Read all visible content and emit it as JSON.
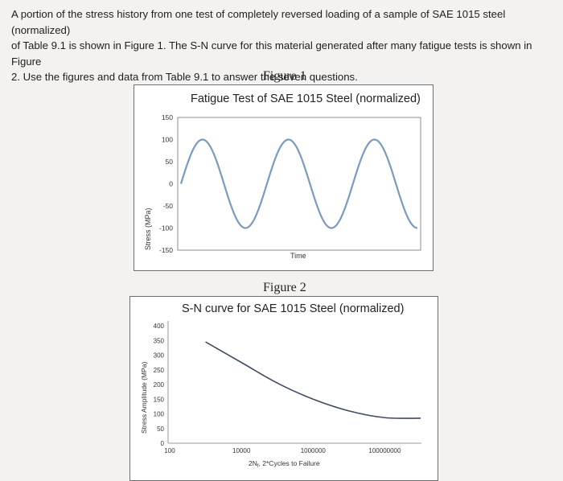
{
  "intro_lines": [
    "A portion of the stress history from one test of completely reversed loading of a sample of SAE 1015 steel (normalized)",
    "of Table 9.1 is shown in Figure 1.  The S-N curve for this material generated after many fatigue tests is shown in Figure",
    "2. Use the figures and data from Table 9.1 to answer the seven questions."
  ],
  "figure1": {
    "caption": "Figure 1",
    "title": "Fatigue Test of SAE 1015 Steel (normalized)",
    "colors": {
      "line": "#7a9bbd"
    }
  },
  "figure2": {
    "caption": "Figure 2",
    "title": "S-N curve for SAE 1015 Steel (normalized)",
    "colors": {
      "line": "#3f4a63"
    }
  },
  "chart_data": [
    {
      "type": "line",
      "title": "Fatigue Test of SAE 1015 Steel (normalized)",
      "xlabel": "Time",
      "ylabel": "Stress (MPa)",
      "ylim": [
        -150,
        150
      ],
      "yticks": [
        "150",
        "100",
        "50",
        "0",
        "-50",
        "-100",
        "-150"
      ],
      "series": [
        {
          "amplitude": 100,
          "mean": 0,
          "cycles": 2.75,
          "start_value": 0
        }
      ],
      "grid": false
    },
    {
      "type": "line",
      "title": "S-N curve for SAE 1015 Steel (normalized)",
      "xlabel": "2Nf 2*Cycles to Failure",
      "xlabel_parts": [
        "2N",
        "f",
        ", 2*Cycles to Failure"
      ],
      "ylabel": "Stress Amplitude (MPa)",
      "xscale": "log",
      "xlim": [
        100,
        1000000000
      ],
      "ylim": [
        0,
        400
      ],
      "xticks": [
        "100",
        "10000",
        "1000000",
        "100000000"
      ],
      "yticks": [
        "400",
        "350",
        "300",
        "250",
        "200",
        "150",
        "100",
        "50",
        "0"
      ],
      "series": [
        {
          "x": [
            1000,
            10000,
            100000,
            1000000,
            10000000,
            100000000,
            1000000000
          ],
          "y": [
            345,
            275,
            205,
            150,
            110,
            87,
            85
          ]
        }
      ],
      "grid": false
    }
  ]
}
